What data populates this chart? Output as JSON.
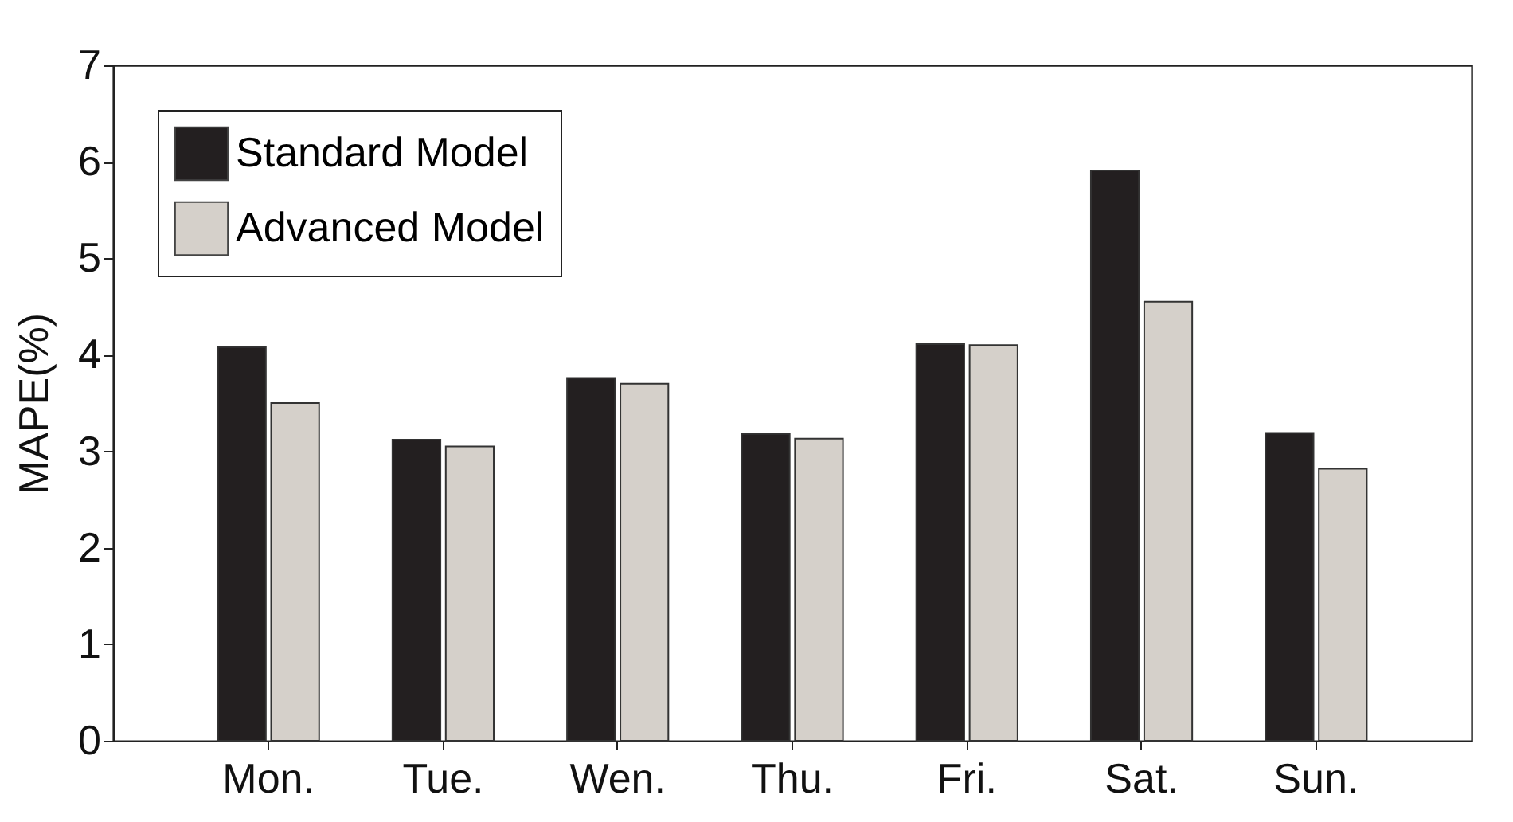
{
  "chart_data": {
    "type": "bar",
    "ylabel": "MAPE(%)",
    "categories": [
      "Mon.",
      "Tue.",
      "Wen.",
      "Thu.",
      "Fri.",
      "Sat.",
      "Sun."
    ],
    "series": [
      {
        "name": "Standard Model",
        "color": "#231f20",
        "values": [
          4.08,
          3.12,
          3.76,
          3.18,
          4.11,
          5.91,
          3.19
        ]
      },
      {
        "name": "Advanced Model",
        "color": "#d5d0ca",
        "values": [
          3.5,
          3.05,
          3.7,
          3.13,
          4.1,
          4.55,
          2.82
        ]
      }
    ],
    "ylim": [
      0,
      7
    ],
    "yticks": [
      0,
      1,
      2,
      3,
      4,
      5,
      6,
      7
    ],
    "grid": false,
    "legend": "top left"
  }
}
